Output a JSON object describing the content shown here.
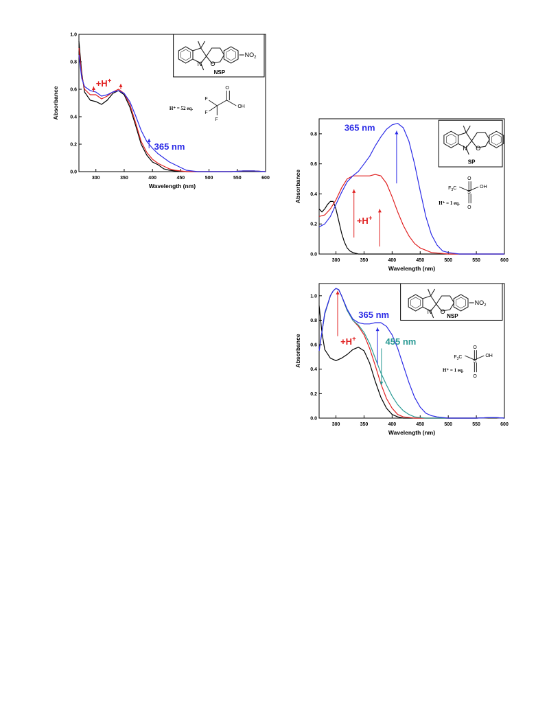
{
  "colors": {
    "black": "#000000",
    "red": "#e02020",
    "blue": "#2a2ae6",
    "teal": "#2a9a94"
  },
  "chart_data": [
    {
      "type": "line",
      "xlabel": "Wavelength (nm)",
      "ylabel": "Absorbance",
      "xlim": [
        270,
        600
      ],
      "ylim": [
        0,
        1.0
      ],
      "xticks": [
        300,
        350,
        400,
        450,
        500,
        550,
        600
      ],
      "yticks": [
        0.0,
        0.2,
        0.4,
        0.6,
        0.8,
        1.0
      ],
      "ytick_labels": [
        "0.0",
        "0.2",
        "0.4",
        "0.6",
        "0.8",
        "1.0"
      ],
      "series": [
        {
          "color": "black",
          "x": [
            270,
            275,
            280,
            290,
            300,
            310,
            320,
            330,
            340,
            350,
            360,
            370,
            380,
            390,
            400,
            410,
            420,
            430,
            440,
            460,
            480,
            500,
            540,
            560,
            580,
            600
          ],
          "y": [
            0.95,
            0.72,
            0.58,
            0.52,
            0.51,
            0.49,
            0.52,
            0.57,
            0.59,
            0.56,
            0.47,
            0.34,
            0.2,
            0.12,
            0.07,
            0.05,
            0.02,
            0.01,
            0.005,
            0,
            0,
            0,
            0,
            0.005,
            0.005,
            0
          ]
        },
        {
          "color": "red",
          "x": [
            270,
            275,
            280,
            290,
            300,
            310,
            320,
            330,
            340,
            350,
            360,
            370,
            380,
            390,
            400,
            410,
            420,
            430,
            440,
            460,
            480,
            500,
            540,
            560,
            580,
            600
          ],
          "y": [
            0.9,
            0.7,
            0.6,
            0.56,
            0.56,
            0.53,
            0.55,
            0.58,
            0.6,
            0.57,
            0.49,
            0.36,
            0.22,
            0.14,
            0.09,
            0.06,
            0.04,
            0.02,
            0.01,
            0,
            0,
            0,
            0,
            0.005,
            0.005,
            0
          ]
        },
        {
          "color": "blue",
          "x": [
            270,
            275,
            280,
            290,
            300,
            310,
            320,
            330,
            340,
            350,
            360,
            370,
            380,
            390,
            400,
            410,
            420,
            430,
            440,
            460,
            480,
            500,
            540,
            560,
            580,
            600
          ],
          "y": [
            0.85,
            0.68,
            0.62,
            0.59,
            0.58,
            0.55,
            0.56,
            0.58,
            0.59,
            0.57,
            0.51,
            0.41,
            0.3,
            0.22,
            0.17,
            0.13,
            0.1,
            0.07,
            0.05,
            0.01,
            0,
            0,
            0,
            0.005,
            0.005,
            0
          ]
        }
      ],
      "annotations": {
        "proton": "+H",
        "proton_sup": "+",
        "light": "365 nm",
        "structure_name": "NSP",
        "equivalents": "H⁺ = 52 eq."
      }
    },
    {
      "type": "line",
      "xlabel": "Wavelength (nm)",
      "ylabel": "Absorbance",
      "xlim": [
        270,
        600
      ],
      "ylim": [
        0,
        0.9
      ],
      "xticks": [
        300,
        350,
        400,
        450,
        500,
        550,
        600
      ],
      "yticks": [
        0.0,
        0.2,
        0.4,
        0.6,
        0.8
      ],
      "ytick_labels": [
        "0.0",
        "0.2",
        "0.4",
        "0.6",
        "0.8"
      ],
      "series": [
        {
          "color": "black",
          "x": [
            270,
            275,
            280,
            285,
            290,
            295,
            300,
            305,
            310,
            315,
            320,
            325,
            330,
            340,
            350,
            380,
            400,
            450,
            500,
            550,
            600
          ],
          "y": [
            0.3,
            0.28,
            0.3,
            0.33,
            0.35,
            0.35,
            0.3,
            0.22,
            0.14,
            0.08,
            0.04,
            0.02,
            0.01,
            0,
            0,
            0,
            0,
            0,
            0,
            0,
            0
          ]
        },
        {
          "color": "red",
          "x": [
            270,
            280,
            290,
            300,
            310,
            320,
            330,
            340,
            350,
            360,
            370,
            380,
            390,
            400,
            410,
            420,
            430,
            440,
            450,
            470,
            500,
            550,
            600
          ],
          "y": [
            0.25,
            0.26,
            0.3,
            0.36,
            0.44,
            0.5,
            0.52,
            0.52,
            0.52,
            0.52,
            0.53,
            0.52,
            0.47,
            0.38,
            0.28,
            0.19,
            0.12,
            0.07,
            0.04,
            0.01,
            0,
            0,
            0
          ]
        },
        {
          "color": "blue",
          "x": [
            270,
            280,
            290,
            300,
            310,
            320,
            330,
            340,
            350,
            360,
            370,
            380,
            390,
            400,
            410,
            420,
            430,
            440,
            450,
            460,
            470,
            480,
            490,
            500,
            520,
            550,
            600
          ],
          "y": [
            0.18,
            0.2,
            0.25,
            0.33,
            0.41,
            0.48,
            0.52,
            0.55,
            0.6,
            0.65,
            0.72,
            0.78,
            0.83,
            0.86,
            0.87,
            0.84,
            0.75,
            0.6,
            0.42,
            0.25,
            0.13,
            0.06,
            0.02,
            0.01,
            0,
            0,
            0
          ]
        }
      ],
      "annotations": {
        "proton": "+H",
        "proton_sup": "+",
        "light": "365 nm",
        "structure_name": "SP",
        "equivalents": "H⁺ = 1 eq."
      }
    },
    {
      "type": "line",
      "xlabel": "Wavelength (nm)",
      "ylabel": "Absorbance",
      "xlim": [
        270,
        600
      ],
      "ylim": [
        0,
        1.1
      ],
      "xticks": [
        300,
        350,
        400,
        450,
        500,
        550,
        600
      ],
      "yticks": [
        0.0,
        0.2,
        0.4,
        0.6,
        0.8,
        1.0
      ],
      "ytick_labels": [
        "0.0",
        "0.2",
        "0.4",
        "0.6",
        "0.8",
        "1.0"
      ],
      "series": [
        {
          "color": "black",
          "x": [
            270,
            275,
            280,
            290,
            300,
            310,
            320,
            330,
            340,
            350,
            360,
            370,
            380,
            390,
            400,
            410,
            420,
            440,
            460,
            480,
            500,
            550,
            580,
            600
          ],
          "y": [
            0.92,
            0.7,
            0.56,
            0.49,
            0.47,
            0.49,
            0.52,
            0.56,
            0.58,
            0.55,
            0.45,
            0.3,
            0.17,
            0.08,
            0.03,
            0.01,
            0,
            0,
            0,
            0,
            0,
            0,
            0.005,
            0
          ]
        },
        {
          "color": "red",
          "x": [
            270,
            280,
            290,
            295,
            300,
            305,
            310,
            320,
            330,
            340,
            350,
            360,
            370,
            380,
            390,
            400,
            410,
            420,
            440,
            460,
            480,
            500,
            550,
            580,
            600
          ],
          "y": [
            0.55,
            0.85,
            1.0,
            1.04,
            1.06,
            1.05,
            1.0,
            0.88,
            0.8,
            0.75,
            0.68,
            0.57,
            0.43,
            0.28,
            0.16,
            0.08,
            0.03,
            0.01,
            0,
            0,
            0,
            0,
            0,
            0.005,
            0
          ]
        },
        {
          "color": "teal",
          "x": [
            270,
            280,
            290,
            295,
            300,
            305,
            310,
            320,
            330,
            340,
            350,
            360,
            370,
            380,
            390,
            400,
            410,
            420,
            430,
            440,
            460,
            480,
            500,
            550,
            580,
            600
          ],
          "y": [
            0.55,
            0.85,
            1.0,
            1.04,
            1.06,
            1.05,
            1.0,
            0.88,
            0.8,
            0.76,
            0.7,
            0.61,
            0.49,
            0.37,
            0.27,
            0.18,
            0.11,
            0.06,
            0.03,
            0.01,
            0,
            0,
            0,
            0,
            0.005,
            0
          ]
        },
        {
          "color": "blue",
          "x": [
            270,
            280,
            290,
            295,
            300,
            305,
            310,
            320,
            330,
            340,
            350,
            360,
            370,
            380,
            390,
            400,
            410,
            420,
            430,
            440,
            450,
            460,
            470,
            480,
            500,
            550,
            580,
            600
          ],
          "y": [
            0.55,
            0.86,
            1.0,
            1.04,
            1.06,
            1.05,
            1.0,
            0.89,
            0.81,
            0.78,
            0.77,
            0.77,
            0.78,
            0.78,
            0.75,
            0.68,
            0.57,
            0.43,
            0.29,
            0.17,
            0.09,
            0.04,
            0.02,
            0.01,
            0,
            0,
            0.005,
            0
          ]
        }
      ],
      "annotations": {
        "proton": "+H",
        "proton_sup": "+",
        "light": "365 nm",
        "light2": "455 nm",
        "structure_name": "NSP",
        "equivalents": "H⁺ = 1 eq."
      }
    }
  ]
}
